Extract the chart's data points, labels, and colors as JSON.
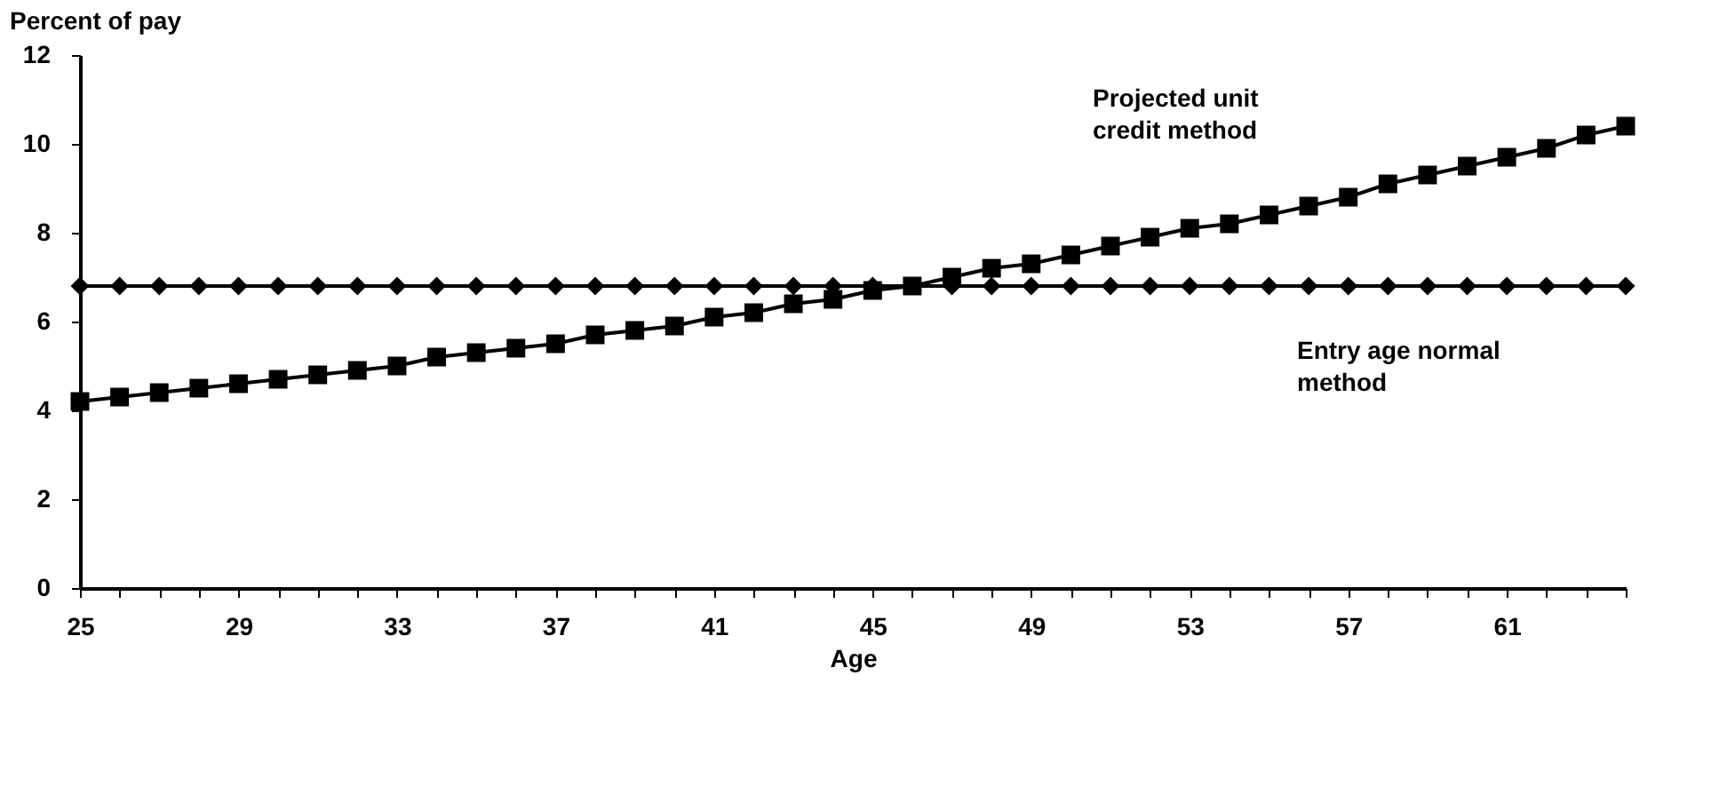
{
  "chart_data": {
    "type": "line",
    "xlabel": "Age",
    "ylabel": "Percent of pay",
    "x": [
      25,
      26,
      27,
      28,
      29,
      30,
      31,
      32,
      33,
      34,
      35,
      36,
      37,
      38,
      39,
      40,
      41,
      42,
      43,
      44,
      45,
      46,
      47,
      48,
      49,
      50,
      51,
      52,
      53,
      54,
      55,
      56,
      57,
      58,
      59,
      60,
      61,
      62,
      63,
      64
    ],
    "series": [
      {
        "name": "Entry age normal method",
        "color": "#000000",
        "marker": "diamond",
        "values": [
          6.8,
          6.8,
          6.8,
          6.8,
          6.8,
          6.8,
          6.8,
          6.8,
          6.8,
          6.8,
          6.8,
          6.8,
          6.8,
          6.8,
          6.8,
          6.8,
          6.8,
          6.8,
          6.8,
          6.8,
          6.8,
          6.8,
          6.8,
          6.8,
          6.8,
          6.8,
          6.8,
          6.8,
          6.8,
          6.8,
          6.8,
          6.8,
          6.8,
          6.8,
          6.8,
          6.8,
          6.8,
          6.8,
          6.8,
          6.8
        ]
      },
      {
        "name": "Projected unit credit method",
        "color": "#000000",
        "marker": "square",
        "values": [
          4.2,
          4.3,
          4.4,
          4.5,
          4.6,
          4.7,
          4.8,
          4.9,
          5.0,
          5.2,
          5.3,
          5.4,
          5.5,
          5.7,
          5.8,
          5.9,
          6.1,
          6.2,
          6.4,
          6.5,
          6.7,
          6.8,
          7.0,
          7.2,
          7.3,
          7.5,
          7.7,
          7.9,
          8.1,
          8.2,
          8.4,
          8.6,
          8.8,
          9.1,
          9.3,
          9.5,
          9.7,
          9.9,
          10.2,
          10.4
        ]
      }
    ],
    "xlim": [
      25,
      64
    ],
    "xticks": [
      25,
      {
        "value": 26,
        "label": null
      },
      {
        "value": 27,
        "label": null
      },
      {
        "value": 28,
        "label": null
      },
      29,
      {
        "value": 30,
        "label": null
      },
      {
        "value": 31,
        "label": null
      },
      {
        "value": 32,
        "label": null
      },
      33,
      {
        "value": 34,
        "label": null
      },
      {
        "value": 35,
        "label": null
      },
      {
        "value": 36,
        "label": null
      },
      37,
      {
        "value": 38,
        "label": null
      },
      {
        "value": 39,
        "label": null
      },
      {
        "value": 40,
        "label": null
      },
      41,
      {
        "value": 42,
        "label": null
      },
      {
        "value": 43,
        "label": null
      },
      {
        "value": 44,
        "label": null
      },
      45,
      {
        "value": 46,
        "label": null
      },
      {
        "value": 47,
        "label": null
      },
      {
        "value": 48,
        "label": null
      },
      49,
      {
        "value": 50,
        "label": null
      },
      {
        "value": 51,
        "label": null
      },
      {
        "value": 52,
        "label": null
      },
      53,
      {
        "value": 54,
        "label": null
      },
      {
        "value": 55,
        "label": null
      },
      {
        "value": 56,
        "label": null
      },
      57,
      {
        "value": 58,
        "label": null
      },
      {
        "value": 59,
        "label": null
      },
      {
        "value": 60,
        "label": null
      },
      61,
      {
        "value": 62,
        "label": null
      },
      {
        "value": 63,
        "label": null
      },
      {
        "value": 64,
        "label": null
      }
    ],
    "ylim": [
      0,
      12
    ],
    "yticks": [
      0,
      2,
      4,
      6,
      8,
      10,
      12
    ],
    "grid": false,
    "line_style": "solid"
  }
}
